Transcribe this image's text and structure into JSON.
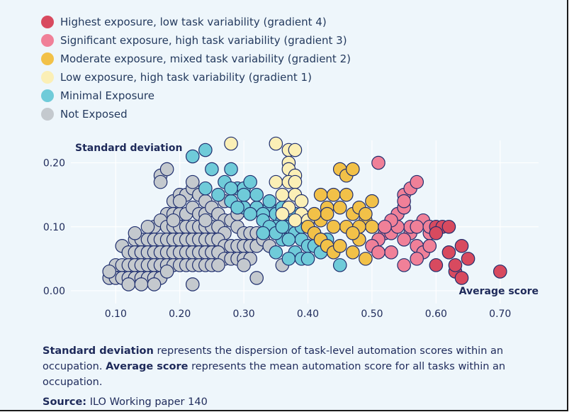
{
  "chart_data": {
    "type": "scatter",
    "xlabel": "Average score",
    "ylabel": "Standard deviation",
    "xlim": [
      0.03,
      0.76
    ],
    "ylim": [
      -0.02,
      0.235
    ],
    "x_ticks": [
      "0.10",
      "0.20",
      "0.30",
      "0.40",
      "0.50",
      "0.60",
      "0.70"
    ],
    "y_ticks": [
      "0.00",
      "0.10",
      "0.20"
    ],
    "grid": true,
    "legend_position": "top-left",
    "series": [
      {
        "name": "Highest exposure, low task variability (gradient 4)",
        "color": "#d84a5f",
        "points": [
          [
            0.6,
            0.04
          ],
          [
            0.6,
            0.1
          ],
          [
            0.61,
            0.1
          ],
          [
            0.62,
            0.06
          ],
          [
            0.63,
            0.03
          ],
          [
            0.63,
            0.04
          ],
          [
            0.64,
            0.02
          ],
          [
            0.64,
            0.07
          ],
          [
            0.65,
            0.05
          ],
          [
            0.7,
            0.03
          ],
          [
            0.6,
            0.09
          ],
          [
            0.62,
            0.1
          ]
        ]
      },
      {
        "name": "Significant exposure, high task variability (gradient 3)",
        "color": "#f08098",
        "points": [
          [
            0.51,
            0.2
          ],
          [
            0.52,
            0.09
          ],
          [
            0.53,
            0.09
          ],
          [
            0.53,
            0.06
          ],
          [
            0.54,
            0.12
          ],
          [
            0.55,
            0.15
          ],
          [
            0.55,
            0.13
          ],
          [
            0.56,
            0.16
          ],
          [
            0.55,
            0.04
          ],
          [
            0.57,
            0.17
          ],
          [
            0.56,
            0.09
          ],
          [
            0.57,
            0.07
          ],
          [
            0.58,
            0.06
          ],
          [
            0.58,
            0.11
          ],
          [
            0.59,
            0.09
          ],
          [
            0.59,
            0.07
          ],
          [
            0.57,
            0.05
          ],
          [
            0.56,
            0.1
          ],
          [
            0.55,
            0.08
          ],
          [
            0.54,
            0.1
          ],
          [
            0.53,
            0.11
          ],
          [
            0.52,
            0.1
          ],
          [
            0.51,
            0.08
          ],
          [
            0.5,
            0.07
          ],
          [
            0.51,
            0.06
          ],
          [
            0.55,
            0.14
          ],
          [
            0.57,
            0.1
          ],
          [
            0.59,
            0.1
          ]
        ]
      },
      {
        "name": "Moderate exposure, mixed task variability (gradient 2)",
        "color": "#f2c148",
        "points": [
          [
            0.45,
            0.19
          ],
          [
            0.46,
            0.18
          ],
          [
            0.47,
            0.19
          ],
          [
            0.42,
            0.15
          ],
          [
            0.44,
            0.15
          ],
          [
            0.46,
            0.15
          ],
          [
            0.43,
            0.13
          ],
          [
            0.45,
            0.13
          ],
          [
            0.47,
            0.12
          ],
          [
            0.48,
            0.13
          ],
          [
            0.49,
            0.11
          ],
          [
            0.4,
            0.1
          ],
          [
            0.41,
            0.09
          ],
          [
            0.42,
            0.08
          ],
          [
            0.43,
            0.07
          ],
          [
            0.44,
            0.06
          ],
          [
            0.45,
            0.07
          ],
          [
            0.47,
            0.06
          ],
          [
            0.48,
            0.08
          ],
          [
            0.49,
            0.05
          ],
          [
            0.5,
            0.1
          ],
          [
            0.49,
            0.12
          ],
          [
            0.46,
            0.1
          ],
          [
            0.44,
            0.1
          ],
          [
            0.42,
            0.11
          ],
          [
            0.43,
            0.12
          ],
          [
            0.48,
            0.1
          ],
          [
            0.5,
            0.14
          ],
          [
            0.41,
            0.12
          ],
          [
            0.47,
            0.09
          ]
        ]
      },
      {
        "name": "Low exposure, high task variability (gradient 1)",
        "color": "#fbefb6",
        "points": [
          [
            0.35,
            0.23
          ],
          [
            0.37,
            0.22
          ],
          [
            0.38,
            0.22
          ],
          [
            0.37,
            0.2
          ],
          [
            0.37,
            0.19
          ],
          [
            0.38,
            0.18
          ],
          [
            0.35,
            0.17
          ],
          [
            0.37,
            0.17
          ],
          [
            0.38,
            0.17
          ],
          [
            0.36,
            0.15
          ],
          [
            0.38,
            0.15
          ],
          [
            0.39,
            0.14
          ],
          [
            0.37,
            0.13
          ],
          [
            0.39,
            0.12
          ],
          [
            0.38,
            0.11
          ],
          [
            0.36,
            0.12
          ],
          [
            0.4,
            0.11
          ],
          [
            0.28,
            0.23
          ]
        ]
      },
      {
        "name": "Minimal Exposure",
        "color": "#6fcbd9",
        "points": [
          [
            0.22,
            0.21
          ],
          [
            0.24,
            0.22
          ],
          [
            0.28,
            0.19
          ],
          [
            0.25,
            0.19
          ],
          [
            0.27,
            0.17
          ],
          [
            0.29,
            0.16
          ],
          [
            0.3,
            0.16
          ],
          [
            0.31,
            0.17
          ],
          [
            0.24,
            0.16
          ],
          [
            0.26,
            0.15
          ],
          [
            0.28,
            0.14
          ],
          [
            0.3,
            0.13
          ],
          [
            0.32,
            0.13
          ],
          [
            0.34,
            0.13
          ],
          [
            0.35,
            0.12
          ],
          [
            0.33,
            0.12
          ],
          [
            0.31,
            0.12
          ],
          [
            0.29,
            0.13
          ],
          [
            0.36,
            0.11
          ],
          [
            0.37,
            0.1
          ],
          [
            0.35,
            0.1
          ],
          [
            0.33,
            0.11
          ],
          [
            0.38,
            0.09
          ],
          [
            0.36,
            0.08
          ],
          [
            0.39,
            0.08
          ],
          [
            0.4,
            0.07
          ],
          [
            0.41,
            0.07
          ],
          [
            0.42,
            0.06
          ],
          [
            0.38,
            0.06
          ],
          [
            0.37,
            0.05
          ],
          [
            0.35,
            0.06
          ],
          [
            0.39,
            0.05
          ],
          [
            0.4,
            0.05
          ],
          [
            0.43,
            0.08
          ],
          [
            0.45,
            0.04
          ],
          [
            0.28,
            0.16
          ],
          [
            0.3,
            0.15
          ],
          [
            0.32,
            0.15
          ],
          [
            0.34,
            0.14
          ],
          [
            0.36,
            0.13
          ],
          [
            0.37,
            0.12
          ],
          [
            0.38,
            0.12
          ],
          [
            0.39,
            0.1
          ],
          [
            0.41,
            0.09
          ],
          [
            0.34,
            0.1
          ],
          [
            0.35,
            0.09
          ],
          [
            0.36,
            0.1
          ],
          [
            0.33,
            0.09
          ],
          [
            0.4,
            0.1
          ],
          [
            0.37,
            0.08
          ]
        ]
      },
      {
        "name": "Not Exposed",
        "color": "#c4c9ce",
        "points": [
          [
            0.17,
            0.18
          ],
          [
            0.18,
            0.19
          ],
          [
            0.17,
            0.17
          ],
          [
            0.19,
            0.14
          ],
          [
            0.2,
            0.15
          ],
          [
            0.21,
            0.15
          ],
          [
            0.22,
            0.16
          ],
          [
            0.22,
            0.17
          ],
          [
            0.23,
            0.15
          ],
          [
            0.24,
            0.14
          ],
          [
            0.18,
            0.12
          ],
          [
            0.19,
            0.12
          ],
          [
            0.2,
            0.12
          ],
          [
            0.21,
            0.12
          ],
          [
            0.22,
            0.13
          ],
          [
            0.23,
            0.12
          ],
          [
            0.24,
            0.12
          ],
          [
            0.25,
            0.13
          ],
          [
            0.26,
            0.12
          ],
          [
            0.27,
            0.11
          ],
          [
            0.28,
            0.11
          ],
          [
            0.16,
            0.1
          ],
          [
            0.17,
            0.11
          ],
          [
            0.18,
            0.1
          ],
          [
            0.19,
            0.1
          ],
          [
            0.2,
            0.1
          ],
          [
            0.21,
            0.1
          ],
          [
            0.22,
            0.1
          ],
          [
            0.23,
            0.1
          ],
          [
            0.24,
            0.1
          ],
          [
            0.25,
            0.1
          ],
          [
            0.26,
            0.1
          ],
          [
            0.27,
            0.09
          ],
          [
            0.29,
            0.1
          ],
          [
            0.3,
            0.09
          ],
          [
            0.31,
            0.09
          ],
          [
            0.32,
            0.09
          ],
          [
            0.13,
            0.08
          ],
          [
            0.14,
            0.08
          ],
          [
            0.15,
            0.08
          ],
          [
            0.16,
            0.08
          ],
          [
            0.17,
            0.08
          ],
          [
            0.18,
            0.08
          ],
          [
            0.19,
            0.08
          ],
          [
            0.2,
            0.08
          ],
          [
            0.21,
            0.08
          ],
          [
            0.22,
            0.08
          ],
          [
            0.23,
            0.08
          ],
          [
            0.24,
            0.08
          ],
          [
            0.25,
            0.08
          ],
          [
            0.26,
            0.08
          ],
          [
            0.27,
            0.07
          ],
          [
            0.28,
            0.07
          ],
          [
            0.29,
            0.07
          ],
          [
            0.3,
            0.07
          ],
          [
            0.31,
            0.07
          ],
          [
            0.32,
            0.07
          ],
          [
            0.33,
            0.08
          ],
          [
            0.34,
            0.07
          ],
          [
            0.11,
            0.07
          ],
          [
            0.12,
            0.06
          ],
          [
            0.13,
            0.06
          ],
          [
            0.14,
            0.06
          ],
          [
            0.15,
            0.06
          ],
          [
            0.16,
            0.06
          ],
          [
            0.17,
            0.06
          ],
          [
            0.18,
            0.06
          ],
          [
            0.19,
            0.06
          ],
          [
            0.2,
            0.06
          ],
          [
            0.21,
            0.06
          ],
          [
            0.22,
            0.06
          ],
          [
            0.23,
            0.06
          ],
          [
            0.24,
            0.06
          ],
          [
            0.25,
            0.06
          ],
          [
            0.26,
            0.06
          ],
          [
            0.27,
            0.05
          ],
          [
            0.28,
            0.05
          ],
          [
            0.29,
            0.05
          ],
          [
            0.3,
            0.05
          ],
          [
            0.31,
            0.05
          ],
          [
            0.1,
            0.04
          ],
          [
            0.11,
            0.04
          ],
          [
            0.12,
            0.04
          ],
          [
            0.13,
            0.04
          ],
          [
            0.14,
            0.04
          ],
          [
            0.15,
            0.04
          ],
          [
            0.16,
            0.04
          ],
          [
            0.17,
            0.04
          ],
          [
            0.18,
            0.04
          ],
          [
            0.19,
            0.04
          ],
          [
            0.2,
            0.04
          ],
          [
            0.21,
            0.04
          ],
          [
            0.22,
            0.04
          ],
          [
            0.23,
            0.04
          ],
          [
            0.24,
            0.04
          ],
          [
            0.25,
            0.04
          ],
          [
            0.26,
            0.04
          ],
          [
            0.09,
            0.02
          ],
          [
            0.1,
            0.02
          ],
          [
            0.11,
            0.02
          ],
          [
            0.12,
            0.02
          ],
          [
            0.13,
            0.02
          ],
          [
            0.14,
            0.02
          ],
          [
            0.15,
            0.02
          ],
          [
            0.16,
            0.02
          ],
          [
            0.17,
            0.02
          ],
          [
            0.18,
            0.03
          ],
          [
            0.09,
            0.03
          ],
          [
            0.12,
            0.01
          ],
          [
            0.14,
            0.01
          ],
          [
            0.16,
            0.01
          ],
          [
            0.22,
            0.01
          ],
          [
            0.32,
            0.02
          ],
          [
            0.3,
            0.04
          ],
          [
            0.36,
            0.04
          ],
          [
            0.13,
            0.09
          ],
          [
            0.15,
            0.1
          ],
          [
            0.2,
            0.14
          ],
          [
            0.19,
            0.11
          ],
          [
            0.24,
            0.11
          ],
          [
            0.27,
            0.14
          ],
          [
            0.29,
            0.12
          ]
        ]
      }
    ]
  },
  "footer": {
    "line_bold1": "Standard deviation",
    "line_text1": " represents the dispersion of task-level automation scores within an occupation. ",
    "line_bold2": "Average score",
    "line_text2": " represents the mean automation score for all tasks within an occupation.",
    "source_label": "Source:",
    "source_text": " ILO Working paper 140"
  }
}
